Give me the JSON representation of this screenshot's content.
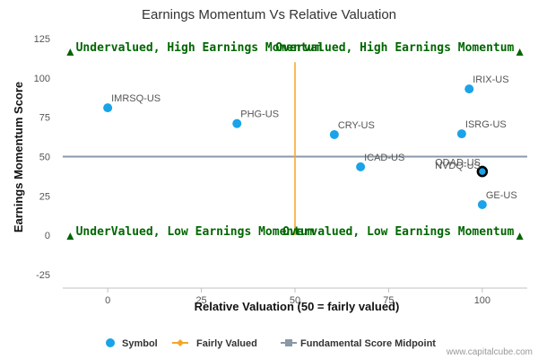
{
  "chart_data": {
    "type": "scatter",
    "title": "Earnings Momentum Vs Relative Valuation",
    "xlabel": "Relative Valuation (50 = fairly valued)",
    "ylabel": "Earnings Momentum Score",
    "xlim": [
      -12,
      112
    ],
    "ylim": [
      -25,
      125
    ],
    "xticks": [
      0,
      25,
      50,
      75,
      100
    ],
    "yticks": [
      -25,
      0,
      25,
      50,
      75,
      100,
      125
    ],
    "grid": false,
    "legend_position": "bottom",
    "series": [
      {
        "name": "Symbol",
        "color": "#1aa3e8",
        "points": [
          {
            "label": "IMRSQ-US",
            "x": 0,
            "y": 81
          },
          {
            "label": "PHG-US",
            "x": 34.5,
            "y": 71
          },
          {
            "label": "CRY-US",
            "x": 60.5,
            "y": 64
          },
          {
            "label": "ICAD-US",
            "x": 67.5,
            "y": 43.5
          },
          {
            "label": "IRIX-US",
            "x": 96.5,
            "y": 93
          },
          {
            "label": "ISRG-US",
            "x": 94.5,
            "y": 64.5
          },
          {
            "label": "QDAD-US",
            "x": 100,
            "y": 41.5
          },
          {
            "label": "NVDQ-US",
            "x": 100,
            "y": 40.5
          },
          {
            "label": "GE-US",
            "x": 100,
            "y": 19.5
          }
        ]
      },
      {
        "name": "Fairly Valued",
        "color": "#f5a623",
        "x": 50
      },
      {
        "name": "Fundamental Score Midpoint",
        "color": "#8a99a8",
        "y": 50
      }
    ],
    "quadrant_labels": [
      "Undervalued, High Earnings Momentum",
      "Overvalued, High Earnings Momentum",
      "UnderValued, Low Earnings Momentum",
      "Overvalued, Low Earnings Momentum"
    ],
    "quadrant_marker_color": "#006600"
  },
  "credit": "www.capitalcube.com"
}
